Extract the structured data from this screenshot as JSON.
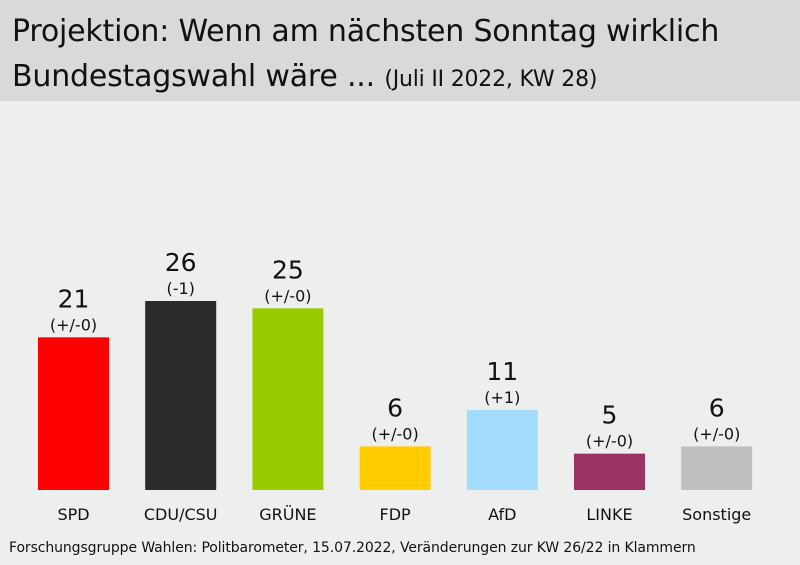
{
  "header": {
    "title_line1": "Projektion: Wenn am nächsten Sonntag wirklich",
    "title_line2": "Bundestagswahl wäre ...",
    "subtitle": "(Juli II 2022, KW 28)"
  },
  "footer": {
    "source": "Forschungsgruppe  Wahlen: Politbarometer, 15.07.2022,  Veränderungen zur KW 26/22 in Klammern"
  },
  "chart_data": {
    "type": "bar",
    "title": "Projektion: Wenn am nächsten Sonntag wirklich Bundestagswahl wäre ... (Juli II 2022, KW 28)",
    "xlabel": "",
    "ylabel": "",
    "ylim": [
      0,
      26
    ],
    "grid": false,
    "categories": [
      "SPD",
      "CDU/CSU",
      "GRÜNE",
      "FDP",
      "AfD",
      "LINKE",
      "Sonstige"
    ],
    "values": [
      21,
      26,
      25,
      6,
      11,
      5,
      6
    ],
    "changes": [
      "(+/-0)",
      "(-1)",
      "(+/-0)",
      "(+/-0)",
      "(+1)",
      "(+/-0)",
      "(+/-0)"
    ],
    "colors": [
      "#ff0000",
      "#2b2b2b",
      "#99cc00",
      "#ffcc00",
      "#a3dbff",
      "#993366",
      "#bfbfbf"
    ],
    "source": "Forschungsgruppe Wahlen: Politbarometer, 15.07.2022, Veränderungen zur KW 26/22 in Klammern"
  }
}
